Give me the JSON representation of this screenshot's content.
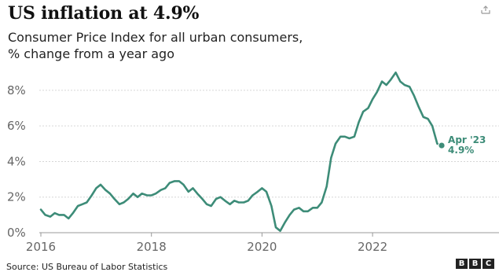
{
  "chart_data": {
    "type": "line",
    "title": "US inflation at 4.9%",
    "subtitle_line1": "Consumer Price Index for all urban consumers,",
    "subtitle_line2": "% change from a year ago",
    "y_ticks": [
      "0%",
      "2%",
      "4%",
      "6%",
      "8%"
    ],
    "y_tick_values": [
      0,
      2,
      4,
      6,
      8
    ],
    "x_ticks": [
      "2016",
      "2018",
      "2020",
      "2022"
    ],
    "x_tick_values": [
      2016,
      2018,
      2020,
      2022
    ],
    "xlim": [
      2016,
      2023.42
    ],
    "ylim": [
      0,
      9.1
    ],
    "grid": true,
    "line_color": "#3d8c78",
    "annotation": {
      "label": "Apr '23",
      "value_label": "4.9%",
      "x": 2023.25,
      "y": 4.9
    },
    "series": [
      {
        "x": [
          2016.0,
          2016.08,
          2016.17,
          2016.25,
          2016.33,
          2016.42,
          2016.5,
          2016.58,
          2016.67,
          2016.75,
          2016.83,
          2016.92,
          2017.0,
          2017.08,
          2017.17,
          2017.25,
          2017.33,
          2017.42,
          2017.5,
          2017.58,
          2017.67,
          2017.75,
          2017.83,
          2017.92,
          2018.0,
          2018.08,
          2018.17,
          2018.25,
          2018.33,
          2018.42,
          2018.5,
          2018.58,
          2018.67,
          2018.75,
          2018.83,
          2018.92,
          2019.0,
          2019.08,
          2019.17,
          2019.25,
          2019.33,
          2019.42,
          2019.5,
          2019.58,
          2019.67,
          2019.75,
          2019.83,
          2019.92,
          2020.0,
          2020.08,
          2020.17,
          2020.25,
          2020.33,
          2020.42,
          2020.5,
          2020.58,
          2020.67,
          2020.75,
          2020.83,
          2020.92,
          2021.0,
          2021.08,
          2021.17,
          2021.25,
          2021.33,
          2021.42,
          2021.5,
          2021.58,
          2021.67,
          2021.75,
          2021.83,
          2021.92,
          2022.0,
          2022.08,
          2022.17,
          2022.25,
          2022.33,
          2022.42,
          2022.5,
          2022.58,
          2022.67,
          2022.75,
          2022.83,
          2022.92,
          2023.0,
          2023.08,
          2023.17,
          2023.25
        ],
        "y": [
          1.3,
          1.0,
          0.9,
          1.1,
          1.0,
          1.0,
          0.8,
          1.1,
          1.5,
          1.6,
          1.7,
          2.1,
          2.5,
          2.7,
          2.4,
          2.2,
          1.9,
          1.6,
          1.7,
          1.9,
          2.2,
          2.0,
          2.2,
          2.1,
          2.1,
          2.2,
          2.4,
          2.5,
          2.8,
          2.9,
          2.9,
          2.7,
          2.3,
          2.5,
          2.2,
          1.9,
          1.6,
          1.5,
          1.9,
          2.0,
          1.8,
          1.6,
          1.8,
          1.7,
          1.7,
          1.8,
          2.1,
          2.3,
          2.5,
          2.3,
          1.5,
          0.3,
          0.1,
          0.6,
          1.0,
          1.3,
          1.4,
          1.2,
          1.2,
          1.4,
          1.4,
          1.7,
          2.6,
          4.2,
          5.0,
          5.4,
          5.4,
          5.3,
          5.4,
          6.2,
          6.8,
          7.0,
          7.5,
          7.9,
          8.5,
          8.3,
          8.6,
          9.0,
          8.5,
          8.3,
          8.2,
          7.7,
          7.1,
          6.5,
          6.4,
          6.0,
          5.0,
          4.9
        ]
      }
    ]
  },
  "footer": {
    "source": "Source: US Bureau of Labor Statistics",
    "logo_letters": [
      "B",
      "B",
      "C"
    ]
  }
}
